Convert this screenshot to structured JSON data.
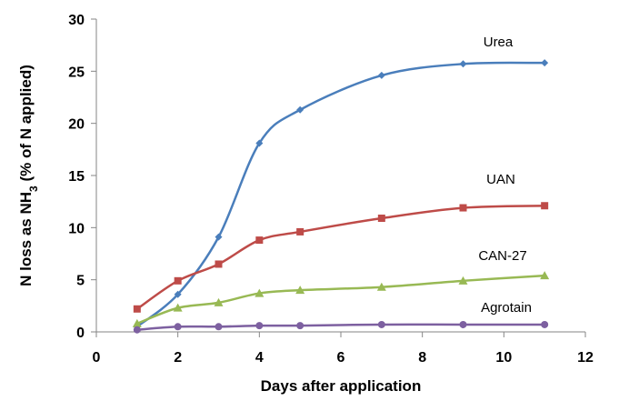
{
  "chart_data": {
    "type": "line",
    "title": "",
    "xlabel": "Days after application",
    "ylabel_parts": [
      "N loss as NH",
      "3",
      " (% of N applied)"
    ],
    "xlim": [
      0,
      12
    ],
    "ylim": [
      0,
      30
    ],
    "xticks": [
      "0",
      "2",
      "4",
      "6",
      "8",
      "10",
      "12"
    ],
    "yticks": [
      "0",
      "5",
      "10",
      "15",
      "20",
      "25",
      "30"
    ],
    "grid": false,
    "legend": "inline labels at right",
    "series": [
      {
        "name": "Urea",
        "color": "#4a7ebb",
        "marker": "diamond",
        "x": [
          1,
          2,
          3,
          4,
          5,
          7,
          9,
          11
        ],
        "y": [
          0.5,
          3.6,
          9.1,
          18.1,
          21.3,
          24.6,
          25.7,
          25.8
        ]
      },
      {
        "name": "UAN",
        "color": "#be4b48",
        "marker": "square",
        "x": [
          1,
          2,
          3,
          4,
          5,
          7,
          9,
          11
        ],
        "y": [
          2.2,
          4.9,
          6.5,
          8.8,
          9.6,
          10.9,
          11.9,
          12.1
        ]
      },
      {
        "name": "CAN-27",
        "color": "#98b954",
        "marker": "triangle",
        "x": [
          1,
          2,
          3,
          4,
          5,
          7,
          9,
          11
        ],
        "y": [
          0.8,
          2.3,
          2.8,
          3.7,
          4.0,
          4.3,
          4.9,
          5.4
        ]
      },
      {
        "name": "Agrotain",
        "color": "#7d60a0",
        "marker": "circle",
        "x": [
          1,
          2,
          3,
          4,
          5,
          7,
          9,
          11
        ],
        "y": [
          0.2,
          0.5,
          0.5,
          0.6,
          0.6,
          0.7,
          0.7,
          0.7
        ]
      }
    ]
  }
}
